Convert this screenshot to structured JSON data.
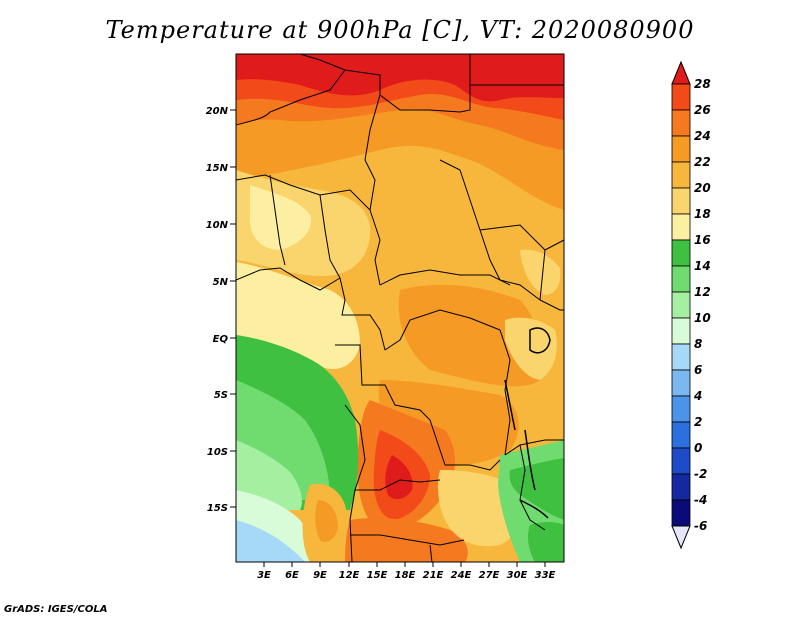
{
  "title": "Temperature at 900hPa [C], VT: 2020080900",
  "credit": "GrADS: IGES/COLA",
  "map": {
    "lat_labels": [
      "20N",
      "15N",
      "10N",
      "5N",
      "EQ",
      "5S",
      "10S",
      "15S"
    ],
    "lon_labels": [
      "3E",
      "6E",
      "9E",
      "12E",
      "15E",
      "18E",
      "21E",
      "24E",
      "27E",
      "30E",
      "33E"
    ]
  },
  "colorbar": {
    "labels": [
      "28",
      "26",
      "24",
      "22",
      "20",
      "18",
      "16",
      "14",
      "12",
      "10",
      "8",
      "6",
      "4",
      "2",
      "0",
      "-2",
      "-4",
      "-6"
    ],
    "colors": [
      "#e01b1b",
      "#f24a18",
      "#f57a1f",
      "#f59a25",
      "#f7b73c",
      "#fad46c",
      "#fdefa2",
      "#40c040",
      "#70dc70",
      "#a4f0a0",
      "#d8fcd8",
      "#a6d8f8",
      "#7ab8f0",
      "#4c94e8",
      "#2c70e0",
      "#1e4cc8",
      "#1428a0",
      "#0a0a78"
    ]
  }
}
